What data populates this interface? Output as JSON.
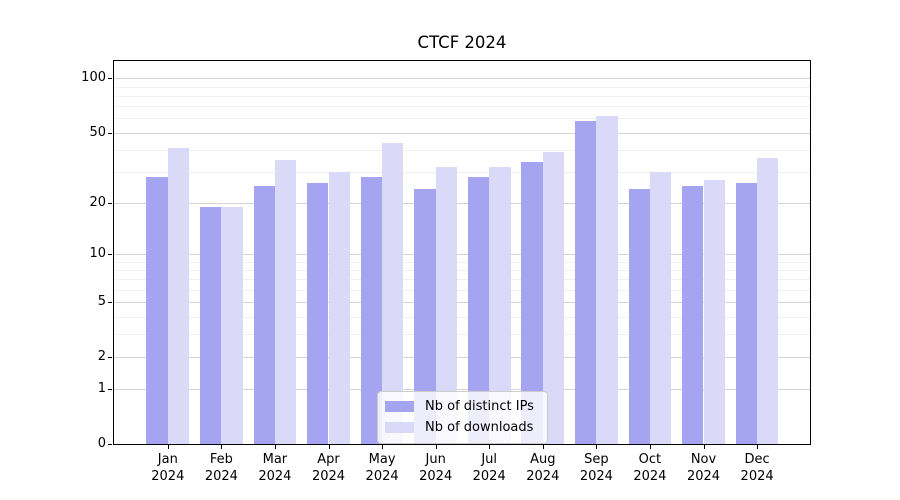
{
  "title": "CTCF 2024",
  "chart_data": {
    "type": "bar",
    "title": "CTCF 2024",
    "categories": [
      "Jan",
      "Feb",
      "Mar",
      "Apr",
      "May",
      "Jun",
      "Jul",
      "Aug",
      "Sep",
      "Oct",
      "Nov",
      "Dec"
    ],
    "x_year_label": "2024",
    "series": [
      {
        "name": "Nb of distinct IPs",
        "color": "#a4a4f0",
        "values": [
          28,
          19,
          25,
          26,
          28,
          24,
          28,
          34,
          58,
          24,
          25,
          26
        ]
      },
      {
        "name": "Nb of downloads",
        "color": "#dadaf8",
        "values": [
          41,
          19,
          35,
          30,
          44,
          32,
          32,
          39,
          62,
          30,
          27,
          36
        ]
      }
    ],
    "yscale": "log1p",
    "yticks_major": [
      0,
      1,
      2,
      5,
      10,
      20,
      50,
      100
    ],
    "yticks_minor": [
      3,
      4,
      6,
      7,
      8,
      9,
      30,
      40,
      60,
      70,
      80,
      90
    ],
    "ylim": [
      0,
      127
    ],
    "xlabel": "",
    "ylabel": "",
    "grid": true,
    "legend_position": "bottom-center"
  }
}
